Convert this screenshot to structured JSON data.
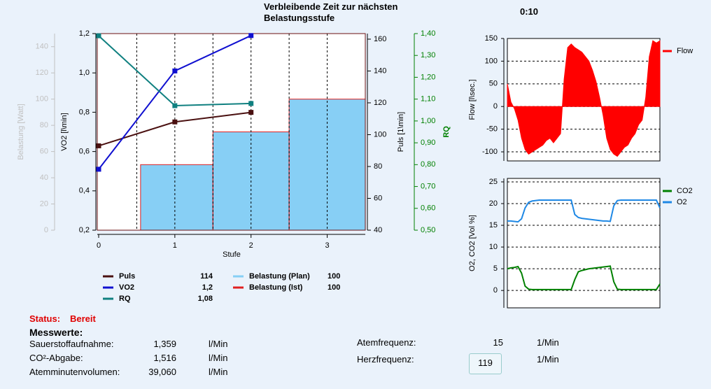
{
  "header": {
    "remaining_label": "Verbleibende Zeit zur nächsten Belastungsstufe",
    "remaining_time": "0:10"
  },
  "chart_data": [
    {
      "type": "line",
      "xlabel": "Stufe",
      "xlim": [
        0,
        3.5
      ],
      "xticks": [
        0,
        1,
        2,
        3
      ],
      "xgrid": [
        0.5,
        1,
        1.5,
        2,
        2.5,
        3
      ],
      "axes": [
        {
          "label": "Belastung [Watt]",
          "color": "#c0c0c0",
          "lim": [
            0,
            150
          ],
          "ticks": [
            0,
            20,
            40,
            60,
            80,
            100,
            120,
            140
          ]
        },
        {
          "label": "VO2 [l\\min]",
          "color": "#000000",
          "lim": [
            0.2,
            1.2
          ],
          "ticks": [
            {
              "value": 0.2,
              "label": "0,2"
            },
            {
              "value": 0.4,
              "label": "0,4"
            },
            {
              "value": 0.6,
              "label": "0,6"
            },
            {
              "value": 0.8,
              "label": "0,8"
            },
            {
              "value": 1.0,
              "label": "1,0"
            },
            {
              "value": 1.2,
              "label": "1,2"
            }
          ]
        },
        {
          "label": "Puls [1\\min]",
          "color": "#000000",
          "lim": [
            40,
            163.5
          ],
          "ticks": [
            40,
            60,
            80,
            100,
            120,
            140,
            160
          ]
        },
        {
          "label": "RQ",
          "color": "#008000",
          "lim": [
            0.5,
            1.4
          ],
          "ticks": [
            {
              "value": 0.5,
              "label": "0,50"
            },
            {
              "value": 0.6,
              "label": "0,60"
            },
            {
              "value": 0.7,
              "label": "0,70"
            },
            {
              "value": 0.8,
              "label": "0,80"
            },
            {
              "value": 0.9,
              "label": "0,90"
            },
            {
              "value": 1.0,
              "label": "1,00"
            },
            {
              "value": 1.1,
              "label": "1,10"
            },
            {
              "value": 1.2,
              "label": "1,20"
            },
            {
              "value": 1.3,
              "label": "1,30"
            },
            {
              "value": 1.4,
              "label": "1,40"
            }
          ]
        }
      ],
      "series": [
        {
          "name": "Puls",
          "color": "#4a1010",
          "axis": 2,
          "x": [
            0,
            1,
            2
          ],
          "values": [
            93,
            108,
            114
          ],
          "current": 114
        },
        {
          "name": "VO2",
          "color": "#1010d0",
          "axis": 1,
          "x": [
            0,
            1,
            2
          ],
          "values": [
            0.51,
            1.01,
            1.19
          ],
          "current": {
            "value": 1.2,
            "label": "1,2"
          }
        },
        {
          "name": "RQ",
          "color": "#108080",
          "axis": 3,
          "x": [
            0,
            1,
            2
          ],
          "values": [
            1.39,
            1.07,
            1.08
          ],
          "current": {
            "value": 1.08,
            "label": "1,08"
          }
        },
        {
          "name": "Belastung (Plan)",
          "color": "#87cff5",
          "axis": 0,
          "bins": [
            0.55,
            1.5,
            2.5,
            3.5
          ],
          "values": [
            50,
            75,
            100
          ],
          "current": 100
        },
        {
          "name": "Belastung (Ist)",
          "color": "#e02020",
          "axis": 0,
          "bins": [
            0.55,
            1.5,
            2.5,
            3.5
          ],
          "values": [
            50,
            75,
            100
          ],
          "current": 100
        }
      ]
    },
    {
      "type": "area",
      "ylabel": "Flow [l\\sec.]",
      "ylim": [
        -120,
        150
      ],
      "yticks": [
        150,
        100,
        50,
        0,
        -50,
        -100
      ],
      "grid": true,
      "series": [
        {
          "name": "Flow",
          "color": "#ff0000",
          "values": [
            50,
            10,
            -5,
            -30,
            -70,
            -95,
            -105,
            -100,
            -95,
            -90,
            -85,
            -75,
            -70,
            -80,
            -70,
            -60,
            60,
            130,
            138,
            130,
            125,
            120,
            110,
            100,
            80,
            55,
            20,
            -20,
            -70,
            -95,
            -105,
            -110,
            -100,
            -90,
            -85,
            -70,
            -60,
            -40,
            -30,
            20,
            110,
            145,
            140,
            145
          ]
        }
      ]
    },
    {
      "type": "line",
      "ylabel": "O2, CO2 [Vol %]",
      "ylim": [
        -4,
        25.8
      ],
      "yticks": [
        25,
        20,
        15,
        10,
        5,
        0
      ],
      "grid": true,
      "series": [
        {
          "name": "CO2",
          "color": "#008000",
          "values": [
            5,
            5.2,
            5.3,
            5.5,
            4,
            1,
            0.3,
            0.2,
            0.2,
            0.2,
            0.2,
            0.2,
            0.2,
            0.2,
            0.2,
            0.2,
            0.2,
            0.2,
            0.2,
            2.5,
            4.3,
            4.6,
            4.8,
            5,
            5.1,
            5.2,
            5.3,
            5.4,
            5.5,
            5.6,
            2,
            0.3,
            0.2,
            0.2,
            0.2,
            0.2,
            0.2,
            0.2,
            0.2,
            0.2,
            0.2,
            0.2,
            0.2,
            1.5
          ]
        },
        {
          "name": "O2",
          "color": "#1e88e5",
          "values": [
            16,
            16,
            15.9,
            15.8,
            16.5,
            19,
            20.3,
            20.6,
            20.7,
            20.8,
            20.8,
            20.8,
            20.8,
            20.8,
            20.8,
            20.8,
            20.8,
            20.8,
            20.8,
            17.5,
            16.8,
            16.6,
            16.5,
            16.4,
            16.3,
            16.2,
            16.1,
            16,
            16,
            15.9,
            19.5,
            20.7,
            20.8,
            20.8,
            20.8,
            20.8,
            20.8,
            20.8,
            20.8,
            20.8,
            20.8,
            20.8,
            20.8,
            19
          ]
        }
      ]
    }
  ],
  "status": {
    "label": "Status:",
    "value": "Bereit"
  },
  "measurements": {
    "title": "Messwerte:",
    "rows": [
      {
        "label": "Sauerstoffaufnahme:",
        "value": {
          "value": 1.359,
          "label": "1,359"
        },
        "unit": "l/Min"
      },
      {
        "label": "CO²-Abgabe:",
        "value": {
          "value": 1.516,
          "label": "1,516"
        },
        "unit": "l/Min"
      },
      {
        "label": "Atemminutenvolumen:",
        "value": {
          "value": 39.06,
          "label": "39,060"
        },
        "unit": "l/Min"
      }
    ]
  },
  "breathing": [
    {
      "label": "Atemfrequenz:",
      "value": 15,
      "unit": "1/Min"
    },
    {
      "label": "Herzfrequenz:",
      "value": 119,
      "unit": "1/Min"
    }
  ]
}
